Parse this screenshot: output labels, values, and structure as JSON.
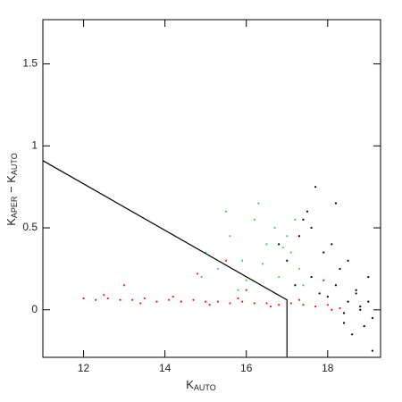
{
  "chart_data": {
    "type": "scatter",
    "x_label": {
      "main": "K",
      "sub": "AUTO"
    },
    "y_label": {
      "parts": [
        {
          "main": "K",
          "sub": "APER"
        },
        {
          "main": " − K",
          "sub": "AUTO"
        }
      ]
    },
    "xlim": [
      11,
      19.3
    ],
    "ylim": [
      -0.29,
      1.77
    ],
    "xticks": [
      12,
      14,
      16,
      18
    ],
    "yticks": [
      0,
      0.5,
      1,
      1.5
    ],
    "series": [
      {
        "color": "#e02020",
        "x": [
          12.0,
          12.3,
          12.6,
          12.9,
          13.2,
          13.5,
          13.8,
          14.1,
          14.4,
          14.7,
          15.0,
          15.3,
          15.6,
          15.9,
          16.2,
          16.5,
          16.8,
          17.1,
          17.4,
          17.7,
          18.0,
          18.3,
          12.5,
          13.4,
          14.2,
          15.1,
          15.8,
          16.6,
          17.3,
          18.1,
          13.0,
          14.8,
          16.0,
          17.9,
          15.5
        ],
        "values": [
          0.07,
          0.06,
          0.07,
          0.06,
          0.06,
          0.07,
          0.05,
          0.06,
          0.05,
          0.06,
          0.05,
          0.05,
          0.04,
          0.05,
          0.04,
          0.04,
          0.03,
          0.04,
          0.03,
          0.02,
          0.03,
          0.01,
          0.09,
          0.04,
          0.08,
          0.03,
          0.07,
          0.02,
          0.06,
          0.0,
          0.15,
          0.22,
          0.12,
          0.18,
          0.3
        ]
      },
      {
        "color": "#60c060",
        "x": [
          15.0,
          15.3,
          15.6,
          15.9,
          16.2,
          16.5,
          16.8,
          17.1,
          17.4,
          15.5,
          16.0,
          16.4,
          16.7,
          17.0,
          17.3,
          15.8,
          16.3,
          16.9,
          17.2,
          14.9
        ],
        "values": [
          0.35,
          0.25,
          0.45,
          0.3,
          0.55,
          0.4,
          0.2,
          0.35,
          0.15,
          0.6,
          0.18,
          0.28,
          0.5,
          0.45,
          0.25,
          0.12,
          0.65,
          0.38,
          0.55,
          0.2
        ]
      },
      {
        "color": "#000000",
        "x": [
          17.0,
          17.3,
          17.6,
          17.9,
          18.2,
          18.5,
          18.8,
          19.1,
          17.5,
          17.8,
          18.1,
          18.4,
          18.7,
          19.0,
          17.2,
          17.7,
          18.3,
          18.6,
          18.9,
          19.1,
          17.4,
          18.0,
          18.5,
          18.8,
          16.8,
          17.6,
          18.2,
          18.7,
          19.0,
          18.4
        ],
        "values": [
          0.3,
          0.45,
          0.2,
          0.35,
          0.15,
          0.05,
          0.02,
          -0.05,
          0.6,
          0.1,
          0.4,
          -0.02,
          0.1,
          0.2,
          0.15,
          0.75,
          0.25,
          -0.15,
          -0.1,
          -0.25,
          0.55,
          0.08,
          0.3,
          0.0,
          0.4,
          0.5,
          0.65,
          0.12,
          0.05,
          -0.08
        ]
      }
    ],
    "lines": [
      {
        "color": "#000000",
        "x": [
          11,
          17,
          17
        ],
        "values": [
          0.91,
          0.06,
          -0.29
        ]
      }
    ]
  }
}
